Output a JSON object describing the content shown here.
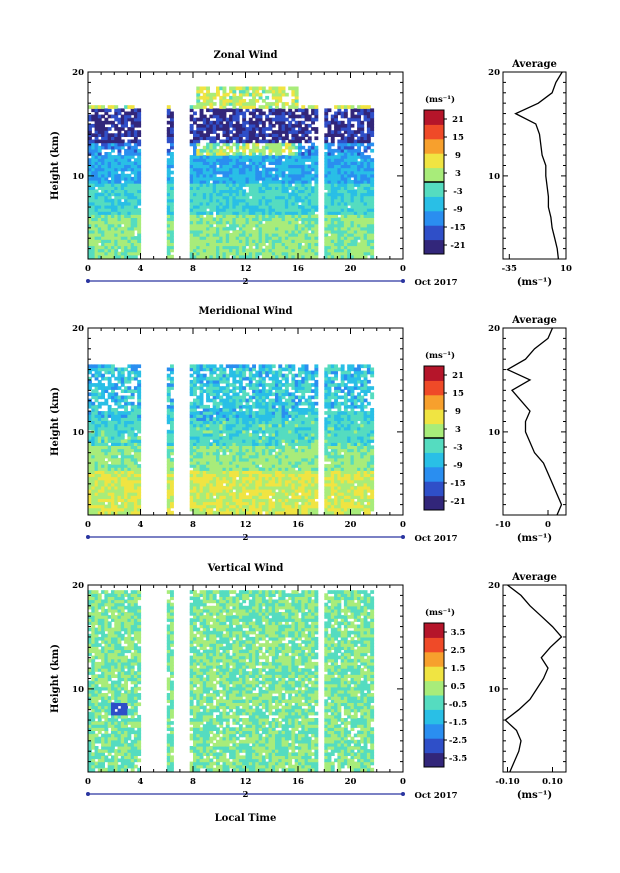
{
  "x_axis_label": "Local Time",
  "date_label": "Oct 2017",
  "day_label": "2",
  "x_ticks": [
    "0",
    "4",
    "8",
    "12",
    "16",
    "20",
    "0"
  ],
  "y_axis_label": "Height (km)",
  "y_ticks": [
    "10",
    "20"
  ],
  "unit_label": "(ms⁻¹)",
  "colorscale": [
    "#32267a",
    "#2f4fc8",
    "#2a8ef0",
    "#29bfe6",
    "#55dcc0",
    "#a8ec7a",
    "#f0e442",
    "#f7a02d",
    "#ef4a28",
    "#b5152a"
  ],
  "chart_data": [
    {
      "type": "heatmap",
      "title": "Zonal Wind",
      "x_range": [
        0,
        24
      ],
      "y_range": [
        2,
        20
      ],
      "colorbar": {
        "label": "(ms⁻¹)",
        "ticks": [
          "21",
          "15",
          "9",
          "3",
          "-3",
          "-9",
          "-15",
          "-21"
        ],
        "range": [
          -24,
          24
        ]
      },
      "data_gaps_hours": [
        [
          4.1,
          5.9
        ],
        [
          6.4,
          7.7
        ],
        [
          17.4,
          18.0
        ],
        [
          21.8,
          24.0
        ]
      ],
      "average_profile": {
        "title": "Average",
        "xlabel": "(ms⁻¹)",
        "x_ticks": [
          "-35",
          "10"
        ],
        "xlim": [
          -40,
          10
        ],
        "y_ticks": [
          "10",
          "20"
        ],
        "height_km": [
          2,
          3,
          4,
          5,
          6,
          7,
          8,
          9,
          10,
          11,
          12,
          13,
          14,
          15,
          16,
          17,
          18,
          19,
          20
        ],
        "value": [
          4,
          3,
          1,
          -1,
          -2,
          -4,
          -4,
          -5,
          -6,
          -6,
          -9,
          -10,
          -11,
          -14,
          -30,
          -12,
          -1,
          2,
          7
        ]
      }
    },
    {
      "type": "heatmap",
      "title": "Meridional Wind",
      "x_range": [
        0,
        24
      ],
      "y_range": [
        2,
        20
      ],
      "colorbar": {
        "label": "(ms⁻¹)",
        "ticks": [
          "21",
          "15",
          "9",
          "3",
          "-3",
          "-9",
          "-15",
          "-21"
        ],
        "range": [
          -24,
          24
        ]
      },
      "data_gaps_hours": [
        [
          4.1,
          5.9
        ],
        [
          6.4,
          7.7
        ],
        [
          17.4,
          18.0
        ],
        [
          21.8,
          24.0
        ]
      ],
      "average_profile": {
        "title": "Average",
        "xlabel": "(ms⁻¹)",
        "x_ticks": [
          "-10",
          "0"
        ],
        "xlim": [
          -10,
          4
        ],
        "y_ticks": [
          "10",
          "20"
        ],
        "height_km": [
          2,
          3,
          4,
          5,
          6,
          7,
          8,
          9,
          10,
          11,
          12,
          13,
          14,
          15,
          16,
          17,
          18,
          19,
          20
        ],
        "value": [
          2,
          3,
          2,
          1,
          0,
          -1,
          -3,
          -4,
          -5,
          -5,
          -4,
          -6,
          -8,
          -4,
          -9,
          -5,
          -3,
          0,
          1
        ]
      }
    },
    {
      "type": "heatmap",
      "title": "Vertical Wind",
      "x_range": [
        0,
        24
      ],
      "y_range": [
        2,
        20
      ],
      "colorbar": {
        "label": "(ms⁻¹)",
        "ticks": [
          "3.5",
          "2.5",
          "1.5",
          "0.5",
          "-0.5",
          "-1.5",
          "-2.5",
          "-3.5"
        ],
        "range": [
          -4,
          4
        ]
      },
      "data_gaps_hours": [
        [
          4.1,
          5.9
        ],
        [
          6.4,
          7.7
        ],
        [
          17.4,
          18.0
        ],
        [
          21.8,
          24.0
        ]
      ],
      "average_profile": {
        "title": "Average",
        "xlabel": "(ms⁻¹)",
        "x_ticks": [
          "-0.10",
          "0.10"
        ],
        "xlim": [
          -0.12,
          0.16
        ],
        "y_ticks": [
          "10",
          "20"
        ],
        "height_km": [
          2,
          3,
          4,
          5,
          6,
          7,
          8,
          9,
          10,
          11,
          12,
          13,
          14,
          15,
          16,
          17,
          18,
          19,
          20
        ],
        "value": [
          -0.09,
          -0.07,
          -0.05,
          -0.04,
          -0.06,
          -0.11,
          -0.05,
          0.0,
          0.03,
          0.06,
          0.08,
          0.05,
          0.09,
          0.14,
          0.1,
          0.05,
          0.0,
          -0.04,
          -0.1
        ]
      }
    }
  ]
}
